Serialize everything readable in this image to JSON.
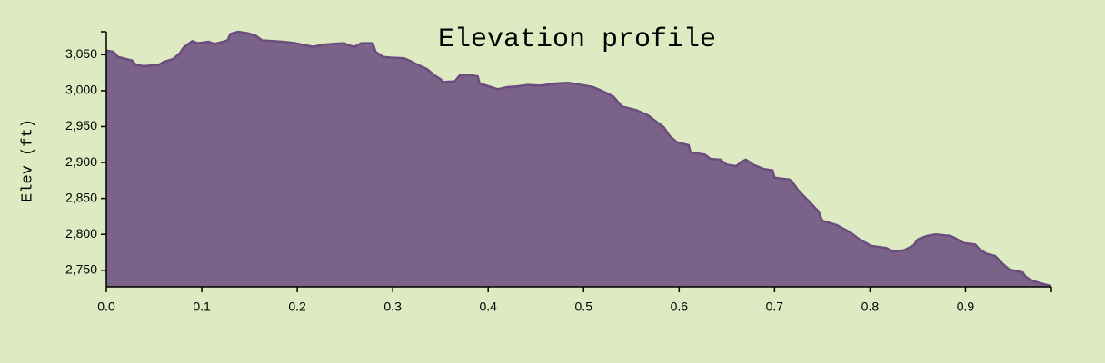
{
  "chart_data": {
    "type": "area",
    "title": "Elevation profile",
    "y_label": "Elev (ft)",
    "color": "#7b6289",
    "line_color": "#6a4d7d",
    "xlim": [
      0,
      0.99
    ],
    "ylim": [
      2727,
      3082
    ],
    "xticks": [
      {
        "value": 0,
        "label": "0.0"
      },
      0.1,
      0.2,
      0.3,
      0.4,
      0.5,
      0.6,
      0.7,
      0.8,
      0.9
    ],
    "yticks": [
      {
        "value": 2750,
        "label": "2,750"
      },
      {
        "value": 2800,
        "label": "2,800"
      },
      {
        "value": 2850,
        "label": "2,850"
      },
      {
        "value": 2900,
        "label": "2,900"
      },
      {
        "value": 2950,
        "label": "2,950"
      },
      {
        "value": 3000,
        "label": "3,000"
      },
      {
        "value": 3050,
        "label": "3,050"
      }
    ],
    "x": [
      0,
      0.0076,
      0.012,
      0.027,
      0.031,
      0.039,
      0.055,
      0.06,
      0.07,
      0.077,
      0.081,
      0.09,
      0.096,
      0.107,
      0.113,
      0.122,
      0.127,
      0.13,
      0.138,
      0.148,
      0.157,
      0.163,
      0.174,
      0.186,
      0.198,
      0.205,
      0.217,
      0.227,
      0.236,
      0.249,
      0.254,
      0.26,
      0.267,
      0.279,
      0.282,
      0.29,
      0.298,
      0.312,
      0.319,
      0.326,
      0.336,
      0.343,
      0.35,
      0.353,
      0.365,
      0.37,
      0.379,
      0.389,
      0.391,
      0.403,
      0.41,
      0.42,
      0.431,
      0.441,
      0.455,
      0.47,
      0.484,
      0.498,
      0.51,
      0.522,
      0.531,
      0.54,
      0.555,
      0.567,
      0.574,
      0.584,
      0.59,
      0.598,
      0.61,
      0.612,
      0.627,
      0.633,
      0.643,
      0.65,
      0.66,
      0.665,
      0.67,
      0.679,
      0.689,
      0.698,
      0.7,
      0.717,
      0.725,
      0.736,
      0.746,
      0.75,
      0.765,
      0.779,
      0.789,
      0.801,
      0.817,
      0.824,
      0.836,
      0.846,
      0.85,
      0.86,
      0.869,
      0.884,
      0.889,
      0.898,
      0.91,
      0.915,
      0.922,
      0.931,
      0.939,
      0.946,
      0.96,
      0.963,
      0.971,
      0.984,
      0.99
    ],
    "values": [
      3056,
      3054,
      3047,
      3042,
      3036,
      3034,
      3036,
      3040,
      3044,
      3052,
      3060,
      3069,
      3066,
      3068,
      3065,
      3068,
      3070,
      3079,
      3082,
      3080,
      3076,
      3070,
      3069,
      3068,
      3066,
      3064,
      3061,
      3064,
      3065,
      3066,
      3063,
      3061,
      3066,
      3066,
      3054,
      3047,
      3046,
      3045,
      3041,
      3036,
      3030,
      3022,
      3016,
      3012,
      3013,
      3021,
      3022,
      3020,
      3010,
      3005,
      3002,
      3005,
      3006,
      3008,
      3007,
      3010,
      3011,
      3008,
      3005,
      2998,
      2992,
      2978,
      2973,
      2966,
      2959,
      2949,
      2937,
      2928,
      2924,
      2914,
      2911,
      2905,
      2904,
      2897,
      2895,
      2901,
      2904,
      2896,
      2891,
      2889,
      2879,
      2876,
      2861,
      2846,
      2832,
      2819,
      2813,
      2803,
      2793,
      2784,
      2781,
      2776,
      2778,
      2785,
      2793,
      2798,
      2800,
      2798,
      2795,
      2788,
      2786,
      2779,
      2773,
      2770,
      2759,
      2751,
      2747,
      2741,
      2735,
      2730,
      2728
    ]
  }
}
